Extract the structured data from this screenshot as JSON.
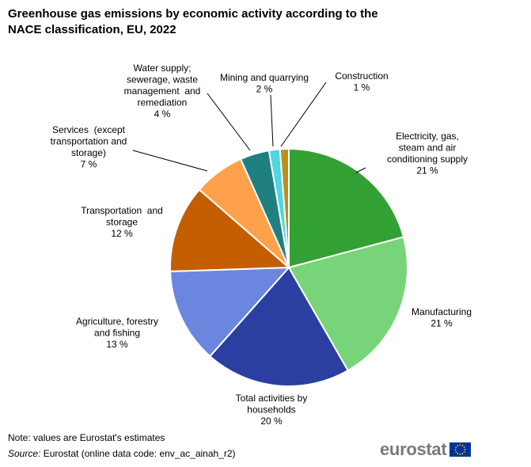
{
  "chart_data": {
    "type": "pie",
    "title_lines": [
      "Greenhouse gas emissions by economic activity according to the",
      "NACE classification, EU, 2022"
    ],
    "unit": "%",
    "slices": [
      {
        "name": "Electricity, gas, steam and air conditioning supply",
        "label_lines": [
          "Electricity, gas,",
          "steam and air",
          "conditioning supply"
        ],
        "value": 21,
        "value_label": "21 %",
        "color": "#33a033"
      },
      {
        "name": "Manufacturing",
        "label_lines": [
          "Manufacturing"
        ],
        "value": 21,
        "value_label": "21 %",
        "color": "#78d478"
      },
      {
        "name": "Total activities by households",
        "label_lines": [
          "Total activities by",
          "households"
        ],
        "value": 20,
        "value_label": "20 %",
        "color": "#2a3fa0"
      },
      {
        "name": "Agriculture, forestry and fishing",
        "label_lines": [
          "Agriculture, forestry",
          "and fishing"
        ],
        "value": 13,
        "value_label": "13 %",
        "color": "#6b86de"
      },
      {
        "name": "Transportation and storage",
        "label_lines": [
          "Transportation  and",
          "storage"
        ],
        "value": 12,
        "value_label": "12 %",
        "color": "#c45e00"
      },
      {
        "name": "Services (except transportation and storage)",
        "label_lines": [
          "Services  (except",
          "transportation and",
          "storage)"
        ],
        "value": 7,
        "value_label": "7 %",
        "color": "#ffa14a"
      },
      {
        "name": "Water supply; sewerage, waste management and remediation",
        "label_lines": [
          "Water supply;",
          "sewerage, waste",
          "management  and",
          "remediation"
        ],
        "value": 4,
        "value_label": "4 %",
        "color": "#208080"
      },
      {
        "name": "Mining and quarrying",
        "label_lines": [
          "Mining and quarrying"
        ],
        "value": 1.5,
        "value_label": "2 %",
        "color": "#4fd6e0"
      },
      {
        "name": "Construction",
        "label_lines": [
          "Construction"
        ],
        "value": 1.2,
        "value_label": "1 %",
        "color": "#b8901a"
      }
    ]
  },
  "footer": {
    "note": "Note: values are Eurostat's estimates",
    "source_label": "Source:",
    "source_text": "Eurostat (online data code: env_ac_ainah_r2)",
    "logo_text": "eurostat"
  },
  "colors": {
    "flag_blue": "#003399",
    "flag_star": "#ffcc00",
    "logo_gray": "#7a7a7a"
  }
}
